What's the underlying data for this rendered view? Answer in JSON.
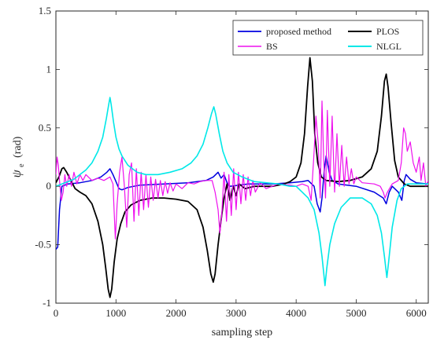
{
  "chart_data": {
    "type": "line",
    "xlabel": "sampling step",
    "ylabel_main": "ψ",
    "ylabel_sub": "e",
    "ylabel_unit": "(rad)",
    "xlim": [
      0,
      6200
    ],
    "ylim": [
      -1,
      1.5
    ],
    "xticks": [
      0,
      1000,
      2000,
      3000,
      4000,
      5000,
      6000
    ],
    "xtick_labels": [
      "0",
      "1000",
      "2000",
      "3000",
      "4000",
      "5000",
      "6000"
    ],
    "yticks": [
      -1,
      -0.5,
      0,
      0.5,
      1,
      1.5
    ],
    "ytick_labels": [
      "-1",
      "-0.5",
      "0",
      "0.5",
      "1",
      "1.5"
    ],
    "grid": false,
    "legend_position": "top-right",
    "series": [
      {
        "name": "proposed method",
        "color": "#0000e0",
        "linewidth": 1.5,
        "points": [
          [
            0,
            -0.54
          ],
          [
            30,
            -0.52
          ],
          [
            60,
            -0.2
          ],
          [
            100,
            0
          ],
          [
            200,
            0.02
          ],
          [
            400,
            0.03
          ],
          [
            600,
            0.05
          ],
          [
            750,
            0.08
          ],
          [
            850,
            0.12
          ],
          [
            900,
            0.15
          ],
          [
            950,
            0.1
          ],
          [
            1000,
            0.04
          ],
          [
            1050,
            -0.02
          ],
          [
            1100,
            -0.03
          ],
          [
            1200,
            -0.01
          ],
          [
            1400,
            0.01
          ],
          [
            1800,
            0.02
          ],
          [
            2200,
            0.03
          ],
          [
            2500,
            0.05
          ],
          [
            2620,
            0.08
          ],
          [
            2700,
            0.12
          ],
          [
            2750,
            0.07
          ],
          [
            2800,
            0.1
          ],
          [
            2850,
            0.03
          ],
          [
            2900,
            0.0
          ],
          [
            3200,
            0.02
          ],
          [
            3600,
            0.02
          ],
          [
            3900,
            0.03
          ],
          [
            4100,
            0.04
          ],
          [
            4200,
            0.05
          ],
          [
            4300,
            0.0
          ],
          [
            4350,
            -0.15
          ],
          [
            4400,
            -0.22
          ],
          [
            4430,
            -0.1
          ],
          [
            4470,
            0.15
          ],
          [
            4500,
            0.26
          ],
          [
            4550,
            0.12
          ],
          [
            4600,
            0.05
          ],
          [
            4700,
            0.02
          ],
          [
            5000,
            0.0
          ],
          [
            5300,
            -0.05
          ],
          [
            5450,
            -0.1
          ],
          [
            5500,
            -0.15
          ],
          [
            5550,
            -0.05
          ],
          [
            5600,
            0.0
          ],
          [
            5700,
            -0.05
          ],
          [
            5760,
            -0.12
          ],
          [
            5800,
            0.05
          ],
          [
            5830,
            0.1
          ],
          [
            5900,
            0.06
          ],
          [
            6000,
            0.03
          ],
          [
            6200,
            0.02
          ]
        ]
      },
      {
        "name": "PLOS",
        "color": "#000000",
        "linewidth": 1.8,
        "points": [
          [
            0,
            0.03
          ],
          [
            50,
            0.08
          ],
          [
            100,
            0.15
          ],
          [
            130,
            0.16
          ],
          [
            180,
            0.12
          ],
          [
            250,
            0.05
          ],
          [
            320,
            -0.02
          ],
          [
            400,
            -0.05
          ],
          [
            500,
            -0.08
          ],
          [
            600,
            -0.15
          ],
          [
            700,
            -0.3
          ],
          [
            780,
            -0.5
          ],
          [
            830,
            -0.7
          ],
          [
            870,
            -0.88
          ],
          [
            900,
            -0.95
          ],
          [
            930,
            -0.88
          ],
          [
            970,
            -0.65
          ],
          [
            1020,
            -0.45
          ],
          [
            1080,
            -0.32
          ],
          [
            1150,
            -0.22
          ],
          [
            1250,
            -0.16
          ],
          [
            1400,
            -0.12
          ],
          [
            1600,
            -0.1
          ],
          [
            1800,
            -0.1
          ],
          [
            2000,
            -0.11
          ],
          [
            2200,
            -0.13
          ],
          [
            2350,
            -0.2
          ],
          [
            2450,
            -0.35
          ],
          [
            2520,
            -0.55
          ],
          [
            2580,
            -0.75
          ],
          [
            2620,
            -0.82
          ],
          [
            2650,
            -0.75
          ],
          [
            2700,
            -0.5
          ],
          [
            2760,
            -0.25
          ],
          [
            2800,
            -0.1
          ],
          [
            2850,
            0.02
          ],
          [
            2900,
            -0.12
          ],
          [
            2950,
            0.0
          ],
          [
            3000,
            -0.08
          ],
          [
            3050,
            0.02
          ],
          [
            3150,
            -0.02
          ],
          [
            3300,
            0.0
          ],
          [
            3600,
            0.0
          ],
          [
            3800,
            0.02
          ],
          [
            3900,
            0.04
          ],
          [
            4000,
            0.08
          ],
          [
            4080,
            0.2
          ],
          [
            4140,
            0.45
          ],
          [
            4190,
            0.85
          ],
          [
            4230,
            1.1
          ],
          [
            4270,
            0.9
          ],
          [
            4310,
            0.45
          ],
          [
            4360,
            0.2
          ],
          [
            4420,
            0.08
          ],
          [
            4500,
            0.05
          ],
          [
            4700,
            0.04
          ],
          [
            4900,
            0.05
          ],
          [
            5100,
            0.08
          ],
          [
            5250,
            0.15
          ],
          [
            5350,
            0.3
          ],
          [
            5420,
            0.6
          ],
          [
            5470,
            0.9
          ],
          [
            5500,
            0.96
          ],
          [
            5530,
            0.85
          ],
          [
            5580,
            0.55
          ],
          [
            5640,
            0.22
          ],
          [
            5700,
            0.08
          ],
          [
            5800,
            0.02
          ],
          [
            5900,
            0.0
          ],
          [
            6000,
            0.0
          ],
          [
            6200,
            0.0
          ]
        ]
      },
      {
        "name": "BS",
        "color": "#ee10ee",
        "linewidth": 1.2,
        "points": [
          [
            0,
            0.1
          ],
          [
            20,
            0.25
          ],
          [
            40,
            0.18
          ],
          [
            60,
            0.05
          ],
          [
            90,
            -0.12
          ],
          [
            120,
            -0.05
          ],
          [
            150,
            0.1
          ],
          [
            180,
            0.0
          ],
          [
            220,
            0.1
          ],
          [
            260,
            0.0
          ],
          [
            300,
            0.12
          ],
          [
            350,
            0.02
          ],
          [
            400,
            0.1
          ],
          [
            450,
            0.05
          ],
          [
            500,
            0.1
          ],
          [
            600,
            0.05
          ],
          [
            700,
            0.07
          ],
          [
            800,
            0.05
          ],
          [
            900,
            0.08
          ],
          [
            950,
            0.02
          ],
          [
            990,
            -0.45
          ],
          [
            1020,
            -0.15
          ],
          [
            1060,
            0.12
          ],
          [
            1100,
            0.25
          ],
          [
            1140,
            0.0
          ],
          [
            1180,
            -0.35
          ],
          [
            1220,
            0.1
          ],
          [
            1260,
            0.2
          ],
          [
            1300,
            -0.3
          ],
          [
            1340,
            0.15
          ],
          [
            1380,
            -0.25
          ],
          [
            1420,
            0.12
          ],
          [
            1460,
            -0.2
          ],
          [
            1500,
            0.1
          ],
          [
            1540,
            -0.18
          ],
          [
            1580,
            0.08
          ],
          [
            1620,
            -0.12
          ],
          [
            1660,
            0.06
          ],
          [
            1700,
            -0.1
          ],
          [
            1740,
            0.05
          ],
          [
            1780,
            -0.08
          ],
          [
            1820,
            0.04
          ],
          [
            1860,
            -0.06
          ],
          [
            1900,
            0.03
          ],
          [
            1950,
            -0.04
          ],
          [
            2000,
            0.02
          ],
          [
            2100,
            -0.02
          ],
          [
            2200,
            0.03
          ],
          [
            2300,
            0.02
          ],
          [
            2400,
            0.04
          ],
          [
            2500,
            0.05
          ],
          [
            2600,
            0.05
          ],
          [
            2650,
            -0.05
          ],
          [
            2700,
            -0.2
          ],
          [
            2730,
            -0.4
          ],
          [
            2760,
            -0.25
          ],
          [
            2800,
            0.12
          ],
          [
            2840,
            -0.3
          ],
          [
            2880,
            0.1
          ],
          [
            2920,
            -0.25
          ],
          [
            2960,
            0.15
          ],
          [
            3000,
            -0.2
          ],
          [
            3040,
            0.12
          ],
          [
            3080,
            -0.15
          ],
          [
            3120,
            0.1
          ],
          [
            3160,
            -0.12
          ],
          [
            3200,
            0.08
          ],
          [
            3240,
            -0.08
          ],
          [
            3280,
            0.05
          ],
          [
            3320,
            -0.05
          ],
          [
            3400,
            0.03
          ],
          [
            3500,
            -0.02
          ],
          [
            3700,
            0.02
          ],
          [
            3900,
            0.01
          ],
          [
            4000,
            0.0
          ],
          [
            4100,
            0.02
          ],
          [
            4200,
            0.0
          ],
          [
            4250,
            -0.12
          ],
          [
            4300,
            0.3
          ],
          [
            4330,
            0.6
          ],
          [
            4370,
            0.35
          ],
          [
            4400,
            -0.1
          ],
          [
            4430,
            0.73
          ],
          [
            4460,
            0.2
          ],
          [
            4490,
            -0.1
          ],
          [
            4520,
            0.65
          ],
          [
            4560,
            0.0
          ],
          [
            4600,
            0.6
          ],
          [
            4640,
            -0.05
          ],
          [
            4680,
            0.45
          ],
          [
            4720,
            0.0
          ],
          [
            4760,
            0.35
          ],
          [
            4800,
            0.0
          ],
          [
            4840,
            0.25
          ],
          [
            4880,
            0.02
          ],
          [
            4920,
            0.15
          ],
          [
            4960,
            0.02
          ],
          [
            5000,
            0.08
          ],
          [
            5100,
            0.03
          ],
          [
            5300,
            0.02
          ],
          [
            5400,
            0.0
          ],
          [
            5450,
            -0.05
          ],
          [
            5480,
            -0.1
          ],
          [
            5520,
            -0.05
          ],
          [
            5600,
            0.02
          ],
          [
            5700,
            0.05
          ],
          [
            5750,
            0.2
          ],
          [
            5790,
            0.5
          ],
          [
            5820,
            0.45
          ],
          [
            5850,
            0.3
          ],
          [
            5900,
            0.38
          ],
          [
            5950,
            0.2
          ],
          [
            6000,
            0.12
          ],
          [
            6050,
            0.25
          ],
          [
            6080,
            0.05
          ],
          [
            6120,
            0.2
          ],
          [
            6160,
            0.0
          ],
          [
            6200,
            0.05
          ]
        ]
      },
      {
        "name": "NLGL",
        "color": "#00e8e8",
        "linewidth": 1.6,
        "points": [
          [
            0,
            0.0
          ],
          [
            100,
            0.02
          ],
          [
            200,
            0.04
          ],
          [
            300,
            0.06
          ],
          [
            400,
            0.1
          ],
          [
            500,
            0.14
          ],
          [
            600,
            0.2
          ],
          [
            700,
            0.3
          ],
          [
            780,
            0.42
          ],
          [
            840,
            0.58
          ],
          [
            880,
            0.7
          ],
          [
            900,
            0.76
          ],
          [
            920,
            0.7
          ],
          [
            960,
            0.55
          ],
          [
            1000,
            0.42
          ],
          [
            1050,
            0.32
          ],
          [
            1100,
            0.26
          ],
          [
            1200,
            0.18
          ],
          [
            1350,
            0.12
          ],
          [
            1500,
            0.1
          ],
          [
            1700,
            0.1
          ],
          [
            1900,
            0.12
          ],
          [
            2100,
            0.15
          ],
          [
            2250,
            0.2
          ],
          [
            2350,
            0.26
          ],
          [
            2450,
            0.36
          ],
          [
            2530,
            0.5
          ],
          [
            2590,
            0.62
          ],
          [
            2630,
            0.68
          ],
          [
            2660,
            0.62
          ],
          [
            2720,
            0.45
          ],
          [
            2780,
            0.3
          ],
          [
            2850,
            0.2
          ],
          [
            2950,
            0.12
          ],
          [
            3100,
            0.08
          ],
          [
            3300,
            0.04
          ],
          [
            3500,
            0.03
          ],
          [
            3700,
            0.02
          ],
          [
            3900,
            0.0
          ],
          [
            4000,
            0.0
          ],
          [
            4100,
            -0.05
          ],
          [
            4200,
            -0.1
          ],
          [
            4300,
            -0.2
          ],
          [
            4380,
            -0.4
          ],
          [
            4430,
            -0.6
          ],
          [
            4460,
            -0.75
          ],
          [
            4480,
            -0.85
          ],
          [
            4510,
            -0.7
          ],
          [
            4560,
            -0.5
          ],
          [
            4640,
            -0.32
          ],
          [
            4750,
            -0.18
          ],
          [
            4900,
            -0.1
          ],
          [
            5100,
            -0.1
          ],
          [
            5250,
            -0.15
          ],
          [
            5350,
            -0.25
          ],
          [
            5420,
            -0.4
          ],
          [
            5470,
            -0.6
          ],
          [
            5510,
            -0.78
          ],
          [
            5540,
            -0.65
          ],
          [
            5600,
            -0.35
          ],
          [
            5680,
            -0.12
          ],
          [
            5750,
            -0.02
          ],
          [
            5850,
            0.02
          ],
          [
            6000,
            0.02
          ],
          [
            6200,
            0.02
          ]
        ]
      }
    ]
  }
}
